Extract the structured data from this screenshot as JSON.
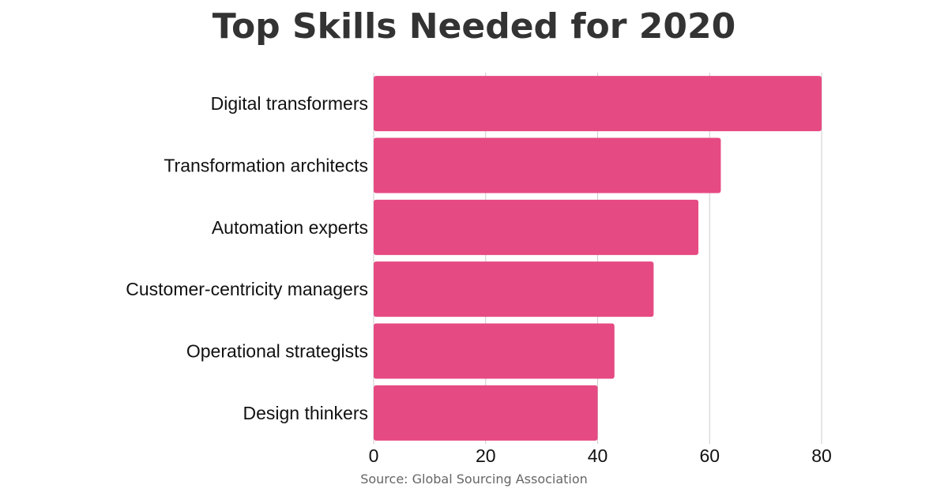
{
  "chart_data": {
    "type": "bar",
    "orientation": "horizontal",
    "title": "Top Skills Needed for 2020",
    "categories": [
      "Digital transformers",
      "Transformation architects",
      "Automation experts",
      "Customer-centricity managers",
      "Operational strategists",
      "Design thinkers"
    ],
    "values": [
      80,
      62,
      58,
      50,
      43,
      40
    ],
    "xlim": [
      0,
      80
    ],
    "xticks": [
      0,
      20,
      40,
      60,
      80
    ],
    "grid": true,
    "bar_color": "#E64A83",
    "grid_color": "#CCCCCC"
  },
  "source": "Source: Global Sourcing Association"
}
